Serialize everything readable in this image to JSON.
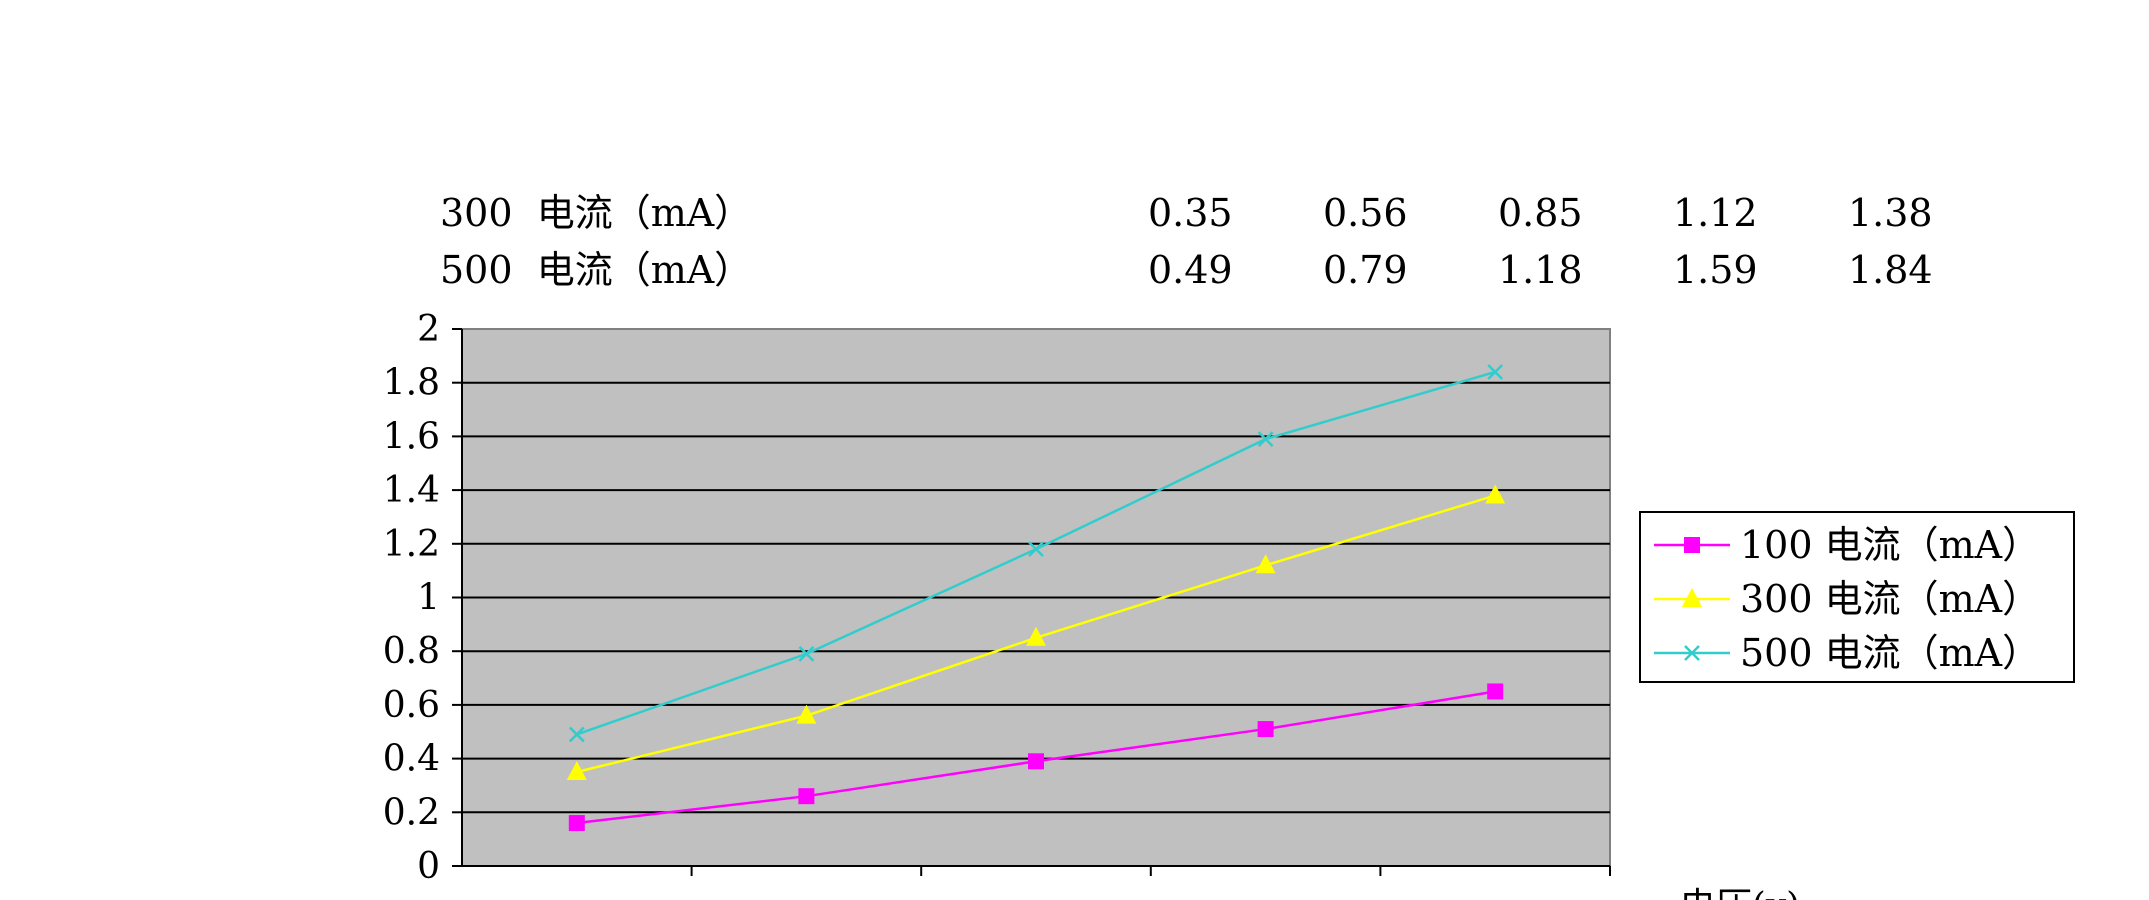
{
  "table": {
    "rows": [
      {
        "label": "300  电流（mA）",
        "values": [
          "0.35",
          "0.56",
          "0.85",
          "1.12",
          "1.38"
        ]
      },
      {
        "label": "500  电流（mA）",
        "values": [
          "0.49",
          "0.79",
          "1.18",
          "1.59",
          "1.84"
        ]
      }
    ]
  },
  "chart_data": {
    "type": "line",
    "title": "",
    "xlabel": "电压(v)",
    "ylabel": "",
    "x_count": 5,
    "ylim": [
      0,
      2
    ],
    "y_ticks": [
      "0",
      "0.2",
      "0.4",
      "0.6",
      "0.8",
      "1",
      "1.2",
      "1.4",
      "1.6",
      "1.8",
      "2"
    ],
    "grid": true,
    "legend_position": "right",
    "series": [
      {
        "name": "100  电流（mA）",
        "values": [
          0.16,
          0.26,
          0.39,
          0.51,
          0.65
        ],
        "color": "#ff00ff",
        "marker": "square"
      },
      {
        "name": "300  电流（mA）",
        "values": [
          0.35,
          0.56,
          0.85,
          1.12,
          1.38
        ],
        "color": "#ffff00",
        "marker": "triangle"
      },
      {
        "name": "500  电流（mA）",
        "values": [
          0.49,
          0.79,
          1.18,
          1.59,
          1.84
        ],
        "color": "#33cccc",
        "marker": "x"
      }
    ]
  }
}
